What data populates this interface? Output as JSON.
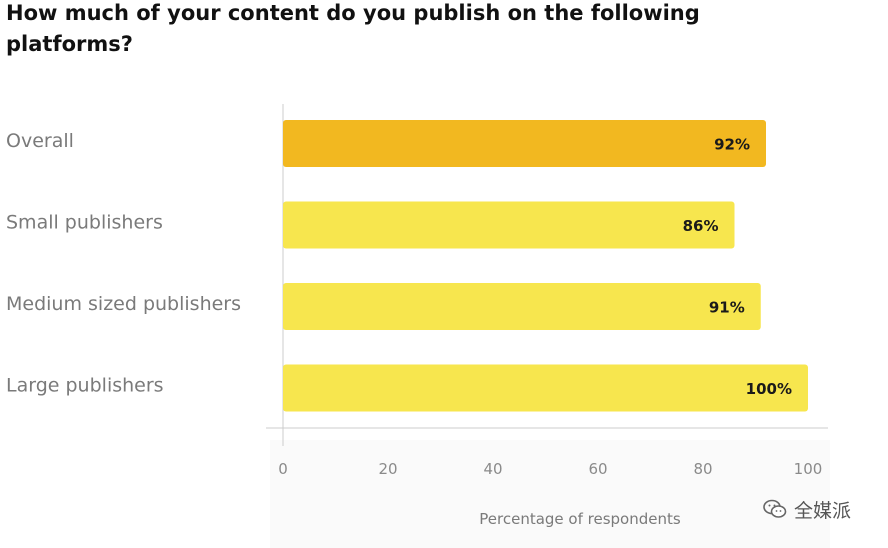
{
  "chart_data": {
    "type": "bar",
    "orientation": "horizontal",
    "title": "How much of your content do you publish on the following platforms?",
    "categories": [
      "Overall",
      "Small publishers",
      "Medium sized publishers",
      "Large publishers"
    ],
    "values": [
      92,
      86,
      91,
      100
    ],
    "value_labels": [
      "92%",
      "86%",
      "91%",
      "100%"
    ],
    "xlabel": "Percentage of respondents",
    "ylabel": "",
    "xlim": [
      0,
      100
    ],
    "xticks": [
      0,
      20,
      40,
      60,
      80,
      100
    ],
    "grid": false,
    "legend": "none",
    "colors": {
      "highlight": "#f2b820",
      "bar": "#f7e64e"
    }
  },
  "watermark": {
    "text": "全媒派",
    "icon": "wechat-icon"
  }
}
